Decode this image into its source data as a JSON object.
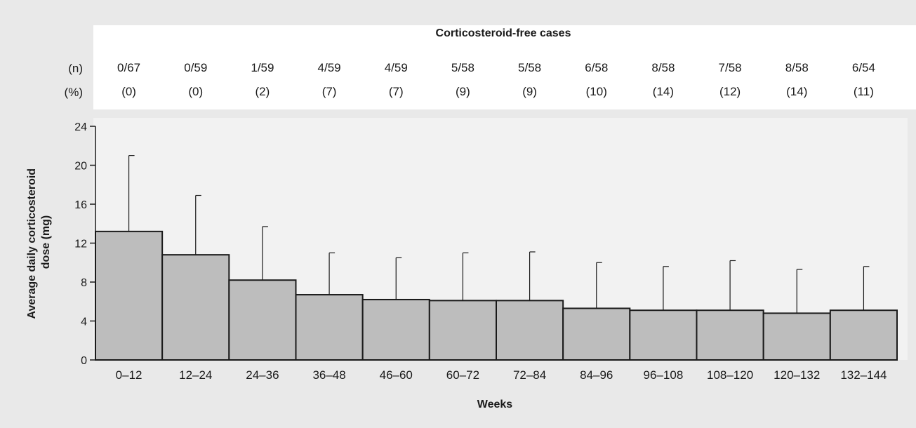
{
  "chart_data": {
    "type": "bar",
    "title": "Corticosteroid-free cases",
    "xlabel": "Weeks",
    "ylabel_line1": "Average daily corticosteroid",
    "ylabel_line2": "dose (mg)",
    "ylim": [
      0,
      24
    ],
    "yticks": [
      "0",
      "4",
      "8",
      "12",
      "16",
      "20",
      "24"
    ],
    "yticks_values": [
      0,
      4,
      8,
      12,
      16,
      20,
      24
    ],
    "categories": [
      "0–12",
      "12–24",
      "24–36",
      "36–48",
      "46–60",
      "60–72",
      "72–84",
      "84–96",
      "96–108",
      "108–120",
      "120–132",
      "132–144"
    ],
    "values": [
      13.2,
      10.8,
      8.2,
      6.7,
      6.2,
      6.1,
      6.1,
      5.3,
      5.1,
      5.1,
      4.8,
      5.1
    ],
    "error_upper": [
      21.0,
      16.9,
      13.7,
      11.0,
      10.5,
      11.0,
      11.1,
      10.0,
      9.6,
      10.2,
      9.3,
      9.6
    ],
    "row_labels": {
      "n": "(n)",
      "pct": "(%)"
    },
    "free_counts": [
      "0/67",
      "0/59",
      "1/59",
      "4/59",
      "4/59",
      "5/58",
      "5/58",
      "6/58",
      "8/58",
      "7/58",
      "8/58",
      "6/54"
    ],
    "free_percent": [
      "(0)",
      "(0)",
      "(2)",
      "(7)",
      "(7)",
      "(9)",
      "(9)",
      "(10)",
      "(14)",
      "(12)",
      "(14)",
      "(11)"
    ],
    "grid": false,
    "legend": "none"
  }
}
